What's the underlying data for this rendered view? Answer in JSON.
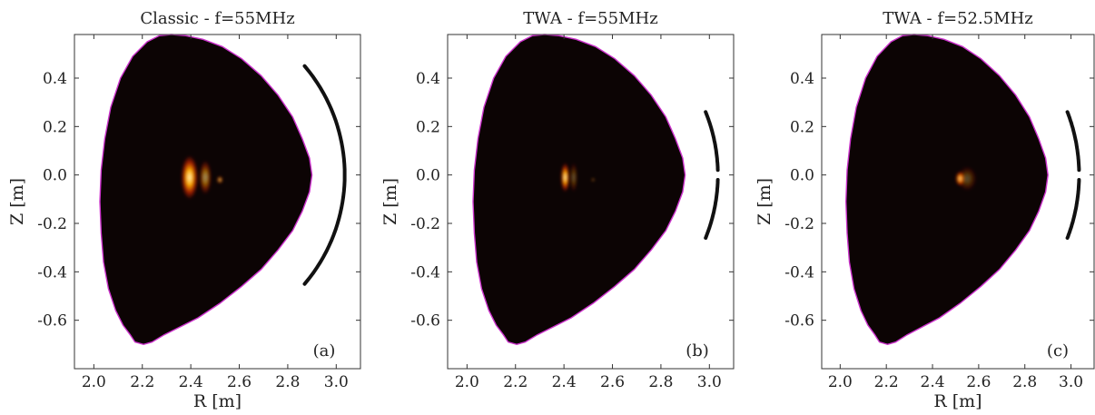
{
  "chart_data": [
    {
      "type": "heatmap",
      "panel_label": "(a)",
      "title": "Classic - f=55MHz",
      "xlabel": "R [m]",
      "ylabel": "Z [m]",
      "xlim": [
        1.92,
        3.1
      ],
      "ylim": [
        -0.8,
        0.58
      ],
      "xticks": [
        "2.0",
        "2.2",
        "2.4",
        "2.6",
        "2.8",
        "3.0"
      ],
      "xtick_values": [
        2.0,
        2.2,
        2.4,
        2.6,
        2.8,
        3.0
      ],
      "yticks": [
        "0.4",
        "0.2",
        "0.0",
        "-0.2",
        "-0.4",
        "-0.6"
      ],
      "ytick_values": [
        0.4,
        0.2,
        0.0,
        -0.2,
        -0.4,
        -0.6
      ],
      "grid": false,
      "antenna": {
        "segments": [
          {
            "z_top": 0.45,
            "z_bottom": -0.45
          }
        ]
      },
      "hotspots": [
        {
          "R": 2.395,
          "Z": -0.01,
          "rR": 0.035,
          "rZ": 0.09,
          "intensity": 1.0
        },
        {
          "R": 2.46,
          "Z": -0.01,
          "rR": 0.025,
          "rZ": 0.07,
          "intensity": 0.6
        },
        {
          "R": 2.52,
          "Z": -0.02,
          "rR": 0.012,
          "rZ": 0.015,
          "intensity": 0.8
        }
      ]
    },
    {
      "type": "heatmap",
      "panel_label": "(b)",
      "title": "TWA - f=55MHz",
      "xlabel": "",
      "ylabel": "Z [m]",
      "xlim": [
        1.92,
        3.1
      ],
      "ylim": [
        -0.8,
        0.58
      ],
      "xticks": [
        "2.0",
        "2.2",
        "2.4",
        "2.6",
        "2.8",
        "3.0"
      ],
      "xtick_values": [
        2.0,
        2.2,
        2.4,
        2.6,
        2.8,
        3.0
      ],
      "yticks": [
        "0.4",
        "0.2",
        "0.0",
        "-0.2",
        "-0.4",
        "-0.6"
      ],
      "ytick_values": [
        0.4,
        0.2,
        0.0,
        -0.2,
        -0.4,
        -0.6
      ],
      "grid": false,
      "antenna": {
        "segments": [
          {
            "z_top": 0.26,
            "z_bottom": 0.02
          },
          {
            "z_top": -0.02,
            "z_bottom": -0.26
          }
        ]
      },
      "hotspots": [
        {
          "R": 2.405,
          "Z": -0.01,
          "rR": 0.018,
          "rZ": 0.06,
          "intensity": 1.0
        },
        {
          "R": 2.44,
          "Z": -0.01,
          "rR": 0.015,
          "rZ": 0.06,
          "intensity": 0.35
        },
        {
          "R": 2.52,
          "Z": -0.02,
          "rR": 0.006,
          "rZ": 0.006,
          "intensity": 0.7
        }
      ]
    },
    {
      "type": "heatmap",
      "panel_label": "(c)",
      "title": "TWA - f=52.5MHz",
      "xlabel": "R [m]",
      "ylabel": "Z [m]",
      "xlim": [
        1.92,
        3.1
      ],
      "ylim": [
        -0.8,
        0.58
      ],
      "xticks": [
        "2.0",
        "2.2",
        "2.4",
        "2.6",
        "2.8",
        "3.0"
      ],
      "xtick_values": [
        2.0,
        2.2,
        2.4,
        2.6,
        2.8,
        3.0
      ],
      "yticks": [
        "0.4",
        "0.2",
        "0.0",
        "-0.2",
        "-0.4",
        "-0.6"
      ],
      "ytick_values": [
        0.4,
        0.2,
        0.0,
        -0.2,
        -0.4,
        -0.6
      ],
      "grid": false,
      "antenna": {
        "segments": [
          {
            "z_top": 0.26,
            "z_bottom": 0.02
          },
          {
            "z_top": -0.02,
            "z_bottom": -0.26
          }
        ]
      },
      "hotspots": [
        {
          "R": 2.52,
          "Z": -0.015,
          "rR": 0.02,
          "rZ": 0.03,
          "intensity": 1.0
        },
        {
          "R": 2.55,
          "Z": -0.015,
          "rR": 0.04,
          "rZ": 0.05,
          "intensity": 0.3
        }
      ]
    }
  ],
  "colors": {
    "plasma_fill": "#0c0404",
    "boundary": "#cc33cc",
    "antenna": "#111111",
    "hot_core": "#fff6c8",
    "hot_mid": "#ffb000",
    "hot_edge": "#c02000"
  }
}
